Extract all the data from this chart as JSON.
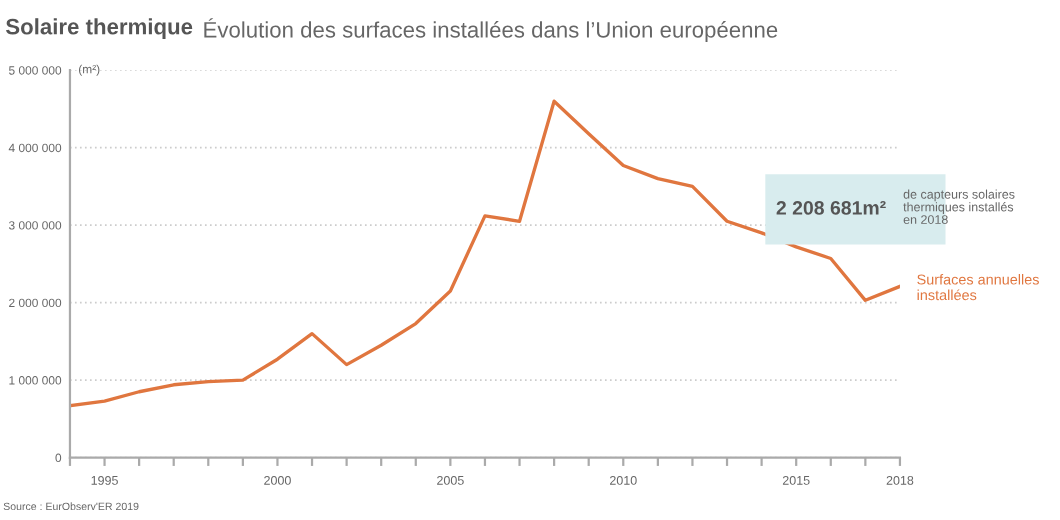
{
  "chart_data": {
    "type": "line",
    "title": "Solaire thermique",
    "subtitle": "Évolution des surfaces installées dans l’Union européenne",
    "ylabel": "(m²)",
    "x": [
      1994,
      1995,
      1996,
      1997,
      1998,
      1999,
      2000,
      2001,
      2002,
      2003,
      2004,
      2005,
      2006,
      2007,
      2008,
      2009,
      2010,
      2011,
      2012,
      2013,
      2014,
      2015,
      2016,
      2017,
      2018
    ],
    "series": [
      {
        "name": "Surfaces annuelles installées",
        "color": "#e0763f",
        "values": [
          670000,
          730000,
          850000,
          940000,
          980000,
          1000000,
          1270000,
          1600000,
          1200000,
          1450000,
          1730000,
          2150000,
          3120000,
          3050000,
          4600000,
          4180000,
          3770000,
          3600000,
          3500000,
          3050000,
          2900000,
          2720000,
          2570000,
          2030000,
          2210000
        ]
      }
    ],
    "xlim": [
      1994,
      2018
    ],
    "xticks": [
      {
        "value": 1994,
        "label": null
      },
      1995,
      {
        "value": 1996,
        "label": null
      },
      {
        "value": 1997,
        "label": null
      },
      {
        "value": 1998,
        "label": null
      },
      {
        "value": 1999,
        "label": null
      },
      2000,
      {
        "value": 2001,
        "label": null
      },
      {
        "value": 2002,
        "label": null
      },
      {
        "value": 2003,
        "label": null
      },
      {
        "value": 2004,
        "label": null
      },
      2005,
      {
        "value": 2006,
        "label": null
      },
      {
        "value": 2007,
        "label": null
      },
      {
        "value": 2008,
        "label": null
      },
      {
        "value": 2009,
        "label": null
      },
      2010,
      {
        "value": 2011,
        "label": null
      },
      {
        "value": 2012,
        "label": null
      },
      {
        "value": 2013,
        "label": null
      },
      {
        "value": 2014,
        "label": null
      },
      2015,
      {
        "value": 2016,
        "label": null
      },
      {
        "value": 2017,
        "label": null
      },
      2018
    ],
    "ylim": [
      0,
      5000000
    ],
    "yticks": [
      {
        "value": 0,
        "label": "0"
      },
      {
        "value": 1000000,
        "label": "1 000 000"
      },
      {
        "value": 2000000,
        "label": "2 000 000"
      },
      {
        "value": 3000000,
        "label": "3 000 000"
      },
      {
        "value": 4000000,
        "label": "4 000 000"
      },
      {
        "value": 5000000,
        "label": "5 000 000"
      }
    ],
    "grid": "y",
    "legend": false,
    "marker": "none",
    "line_style": "solid",
    "annotations": [
      "2 208 681m²",
      "de capteurs solaires\nthermiques installés\nen 2018",
      "Source : EurObserv'ER 2019"
    ]
  }
}
